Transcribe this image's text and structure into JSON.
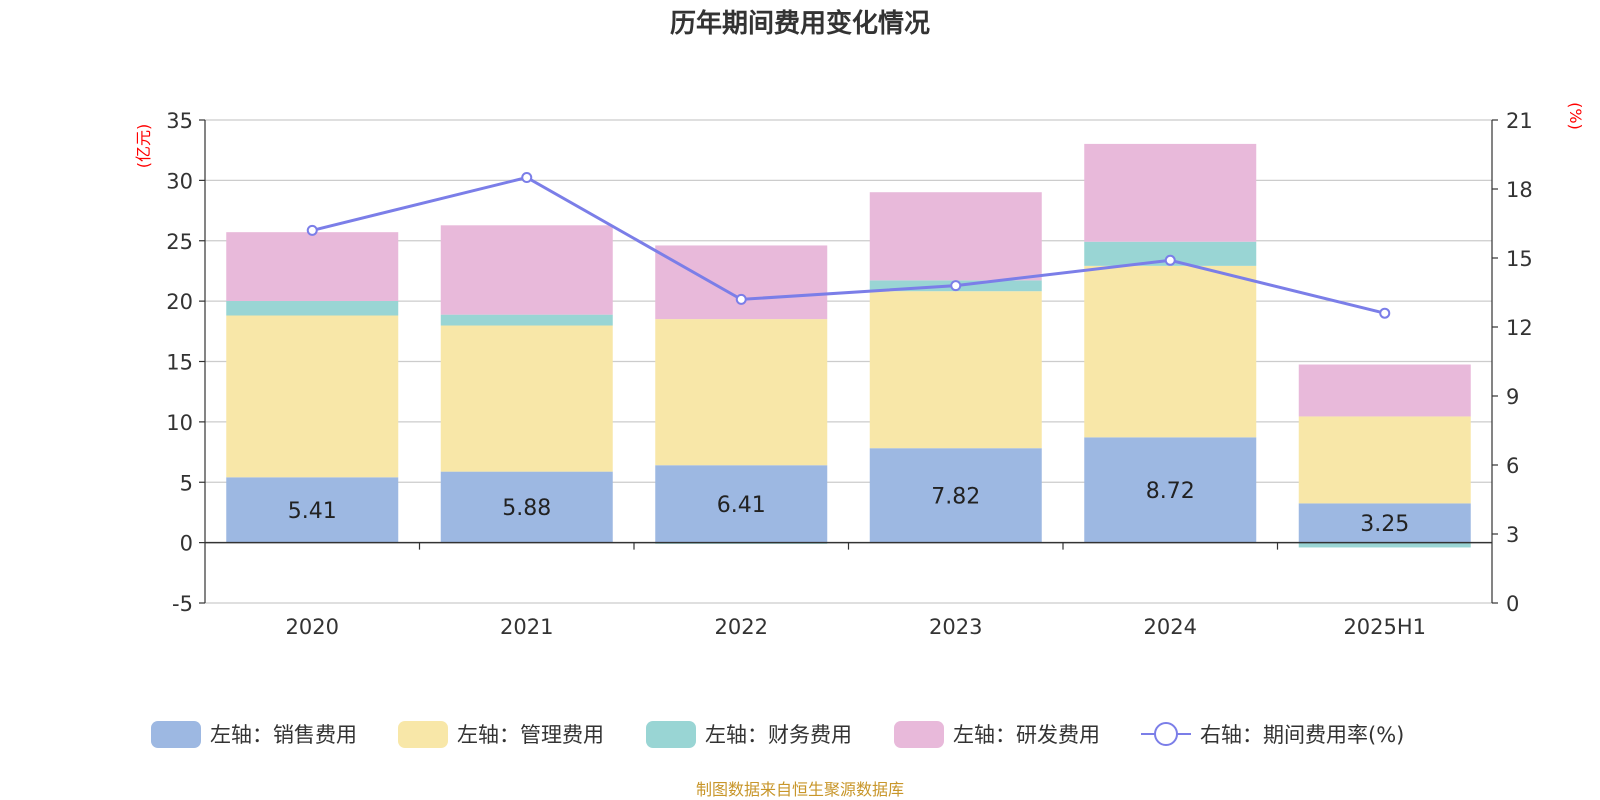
{
  "chart_data": {
    "type": "bar",
    "title": "历年期间费用变化情况",
    "categories": [
      "2020",
      "2021",
      "2022",
      "2023",
      "2024",
      "2025H1"
    ],
    "y_left": {
      "unit": "(亿元)",
      "range": [
        -5,
        35
      ],
      "ticks": [
        -5,
        0,
        5,
        10,
        15,
        20,
        25,
        30,
        35
      ]
    },
    "y_right": {
      "unit": "(%)",
      "range": [
        0,
        21
      ],
      "ticks": [
        0,
        3,
        6,
        9,
        12,
        15,
        18,
        21
      ]
    },
    "stacked": true,
    "series": [
      {
        "name": "左轴：销售费用",
        "axis": "left",
        "color": "#9db8e2",
        "values": [
          5.41,
          5.88,
          6.41,
          7.82,
          8.72,
          3.25
        ],
        "labels": [
          "5.41",
          "5.88",
          "6.41",
          "7.82",
          "8.72",
          "3.25"
        ]
      },
      {
        "name": "左轴：管理费用",
        "axis": "left",
        "color": "#f8e7a8",
        "values": [
          13.4,
          12.1,
          12.1,
          13.0,
          14.2,
          7.2
        ]
      },
      {
        "name": "左轴：财务费用",
        "axis": "left",
        "color": "#99d5d4",
        "values": [
          1.2,
          0.9,
          -0.1,
          0.9,
          2.0,
          -0.4
        ]
      },
      {
        "name": "左轴：研发费用",
        "axis": "left",
        "color": "#e8b9da",
        "values": [
          5.7,
          7.4,
          6.1,
          7.3,
          8.1,
          4.3
        ]
      },
      {
        "name": "右轴：期间费用率(%)",
        "axis": "right",
        "type": "line",
        "color": "#7b7ee8",
        "values": [
          16.2,
          18.5,
          13.2,
          13.8,
          14.9,
          12.6
        ]
      }
    ],
    "legend_position": "bottom",
    "grid": true,
    "source": "制图数据来自恒生聚源数据库"
  }
}
